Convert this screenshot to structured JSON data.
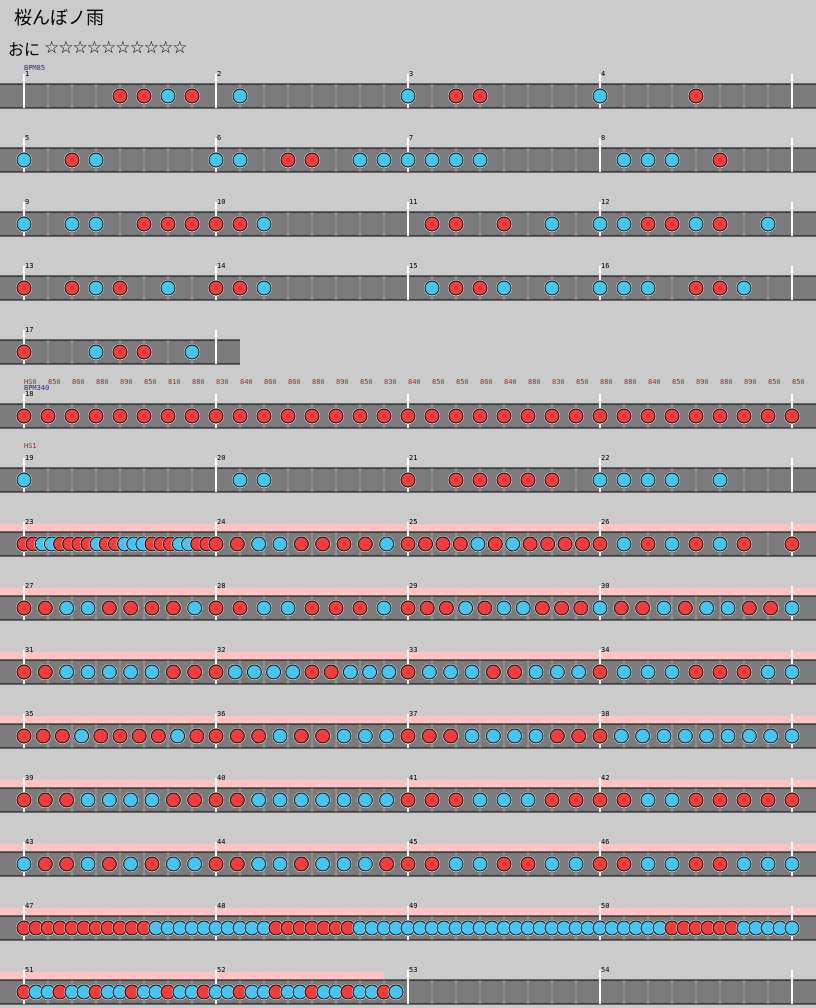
{
  "song": {
    "title": "桜んぼノ雨",
    "difficulty": "おに",
    "stars": "☆☆☆☆☆☆☆☆☆☆"
  },
  "colors": {
    "background": "#cbcbcb",
    "lane": "#7b7b7b",
    "don": "#f33d3d",
    "ka": "#48c4f0",
    "gogo": "#ffc4c4",
    "bpm_text": "#2a2aa8",
    "hs_text": "#c41e1e"
  },
  "rows": [
    {
      "measures": [
        {
          "n": "1",
          "sub": 4,
          "notes": "____ddkd"
        },
        {
          "n": "2",
          "sub": 4,
          "notes": "_k__"
        },
        {
          "n": "3",
          "sub": 4,
          "notes": "k_dd"
        },
        {
          "n": "4",
          "sub": 4,
          "notes": "k___d"
        }
      ],
      "end": true,
      "events": [
        {
          "measure": 0,
          "text": "BPM85",
          "kind": "bpm"
        }
      ]
    },
    {
      "measures": [
        {
          "n": "5",
          "sub": 4,
          "notes": "k_dk"
        },
        {
          "n": "6",
          "sub": 4,
          "notes": "kc_dd_kk"
        },
        {
          "n": "7",
          "sub": 4,
          "notes": "kkkk"
        },
        {
          "n": "8",
          "sub": 4,
          "notes": "_kkc_d"
        }
      ],
      "end": true
    },
    {
      "measures": [
        {
          "n": "9",
          "sub": 4,
          "notes": "k_kk_ddd"
        },
        {
          "n": "10",
          "sub": 4,
          "notes": "ddk_"
        },
        {
          "n": "11",
          "sub": 4,
          "notes": "_dd_d_k"
        },
        {
          "n": "12",
          "sub": 4,
          "notes": "kkddkd_k"
        },
        {
          "n": "",
          "sub": 4,
          "notes": "_kk"
        }
      ],
      "end": false
    },
    {
      "measures": [
        {
          "n": "13",
          "sub": 4,
          "notes": "d_dkd_k"
        },
        {
          "n": "14",
          "sub": 4,
          "notes": "ddk"
        },
        {
          "n": "15",
          "sub": 4,
          "notes": "_kddk_k"
        },
        {
          "n": "16",
          "sub": 4,
          "notes": "kkk_ddk"
        },
        {
          "n": "",
          "sub": 4,
          "notes": "_kk"
        }
      ],
      "end": false
    },
    {
      "measures": [
        {
          "n": "17",
          "sub": 4,
          "notes": "d__kdd_k"
        }
      ],
      "end": true
    },
    {
      "measures": [
        {
          "n": "18",
          "sub": 8,
          "notes": "dddddddd"
        },
        {
          "n": "",
          "sub": 8,
          "notes": "dddddddd"
        },
        {
          "n": "",
          "sub": 8,
          "notes": "dddddddd"
        },
        {
          "n": "",
          "sub": 8,
          "notes": "dddddddd"
        },
        {
          "n": "",
          "sub": 2,
          "notes": "d"
        }
      ],
      "end": false,
      "events": [
        {
          "measure": 0,
          "text": "BPM340",
          "kind": "bpm"
        },
        {
          "measure": 0,
          "text": "HS0",
          "kind": "hs"
        },
        {
          "measure": 0,
          "text": "850 860 880 890 850 810 880 830 840 860 860 880 890 850 830 840 850 850 860 840 880 830 850 880 880 840 850 890 880 890 850 850",
          "kind": "hs-list"
        }
      ]
    },
    {
      "measures": [
        {
          "n": "19",
          "sub": 4,
          "notes": "k"
        },
        {
          "n": "20",
          "sub": 4,
          "notes": "_kk"
        },
        {
          "n": "21",
          "sub": 4,
          "notes": "d_ddddd"
        },
        {
          "n": "22",
          "sub": 4,
          "notes": "kkkk_k"
        },
        {
          "n": "",
          "sub": 4,
          "notes": ""
        }
      ],
      "end": false,
      "events": [
        {
          "measure": 0,
          "text": "HS1",
          "kind": "hs"
        }
      ]
    },
    {
      "measures": [
        {
          "n": "23",
          "sub": 8,
          "notes": "ddkkddddkddkkkdddkkdd"
        },
        {
          "n": "24",
          "sub": 8,
          "notes": "ddkkddddk"
        },
        {
          "n": "25",
          "sub": 8,
          "notes": "ddddkdkdddd"
        },
        {
          "n": "26",
          "sub": 8,
          "notes": "dkdkdkd"
        },
        {
          "n": "",
          "sub": 4,
          "notes": "dkd"
        }
      ],
      "end": false,
      "gogo": true
    },
    {
      "measures": [
        {
          "n": "27",
          "sub": 8,
          "notes": "ddkkddddk"
        },
        {
          "n": "28",
          "sub": 8,
          "notes": "ddkkdddk"
        },
        {
          "n": "29",
          "sub": 8,
          "notes": "dddkdkkddd"
        },
        {
          "n": "30",
          "sub": 8,
          "notes": "kddkdkkdd"
        },
        {
          "n": "",
          "sub": 4,
          "notes": "kdd"
        }
      ],
      "end": false,
      "gogo": true
    },
    {
      "measures": [
        {
          "n": "31",
          "sub": 8,
          "notes": "ddkkkkkdd"
        },
        {
          "n": "32",
          "sub": 8,
          "notes": "dkkkkddkkk"
        },
        {
          "n": "33",
          "sub": 8,
          "notes": "dkkkddkkk"
        },
        {
          "n": "34",
          "sub": 8,
          "notes": "dkkkdddk"
        },
        {
          "n": "",
          "sub": 4,
          "notes": "kd"
        }
      ],
      "end": false,
      "gogo": true
    },
    {
      "measures": [
        {
          "n": "35",
          "sub": 8,
          "notes": "dddkddddkd"
        },
        {
          "n": "36",
          "sub": 8,
          "notes": "dddkddkkk"
        },
        {
          "n": "37",
          "sub": 8,
          "notes": "dddkkkkdd"
        },
        {
          "n": "38",
          "sub": 8,
          "notes": "dkkkkkkkk"
        },
        {
          "n": "",
          "sub": 4,
          "notes": "kk"
        }
      ],
      "end": false,
      "gogo": true
    },
    {
      "measures": [
        {
          "n": "39",
          "sub": 8,
          "notes": "dddkkkkdd"
        },
        {
          "n": "40",
          "sub": 8,
          "notes": "ddkkkkkkk"
        },
        {
          "n": "41",
          "sub": 8,
          "notes": "dddkkkdd"
        },
        {
          "n": "42",
          "sub": 8,
          "notes": "ddkkdddd"
        },
        {
          "n": "",
          "sub": 4,
          "notes": "dd"
        }
      ],
      "end": false,
      "gogo": true
    },
    {
      "measures": [
        {
          "n": "43",
          "sub": 8,
          "notes": "kddkdkdkk"
        },
        {
          "n": "44",
          "sub": 8,
          "notes": "ddkkdkkkd"
        },
        {
          "n": "45",
          "sub": 8,
          "notes": "ddkkddkk"
        },
        {
          "n": "46",
          "sub": 8,
          "notes": "ddkkddkk"
        },
        {
          "n": "",
          "sub": 4,
          "notes": "kk"
        }
      ],
      "end": false,
      "gogo": true
    },
    {
      "measures": [
        {
          "n": "47",
          "sub": 16,
          "notes": "dddddddddddkkkkk"
        },
        {
          "n": "48",
          "sub": 16,
          "notes": "kkkkkdddddddkkkk"
        },
        {
          "n": "49",
          "sub": 16,
          "notes": "kkkkkkkkkkkkkkkk"
        },
        {
          "n": "50",
          "sub": 16,
          "notes": "kkkkkkddddddkkkk"
        },
        {
          "n": "",
          "sub": 4,
          "notes": "kkk"
        }
      ],
      "end": false,
      "gogo": true
    },
    {
      "measures": [
        {
          "n": "51",
          "sub": 16,
          "notes": "dkkdkkdkkdkkdkkd"
        },
        {
          "n": "52",
          "sub": 16,
          "notes": "kkdkkdkkdkkdkkdk"
        },
        {
          "n": "53",
          "sub": 4,
          "notes": ""
        },
        {
          "n": "54",
          "sub": 4,
          "notes": ""
        },
        {
          "n": "",
          "sub": 4,
          "notes": ""
        }
      ],
      "end": false,
      "gogo_until": 2
    }
  ]
}
